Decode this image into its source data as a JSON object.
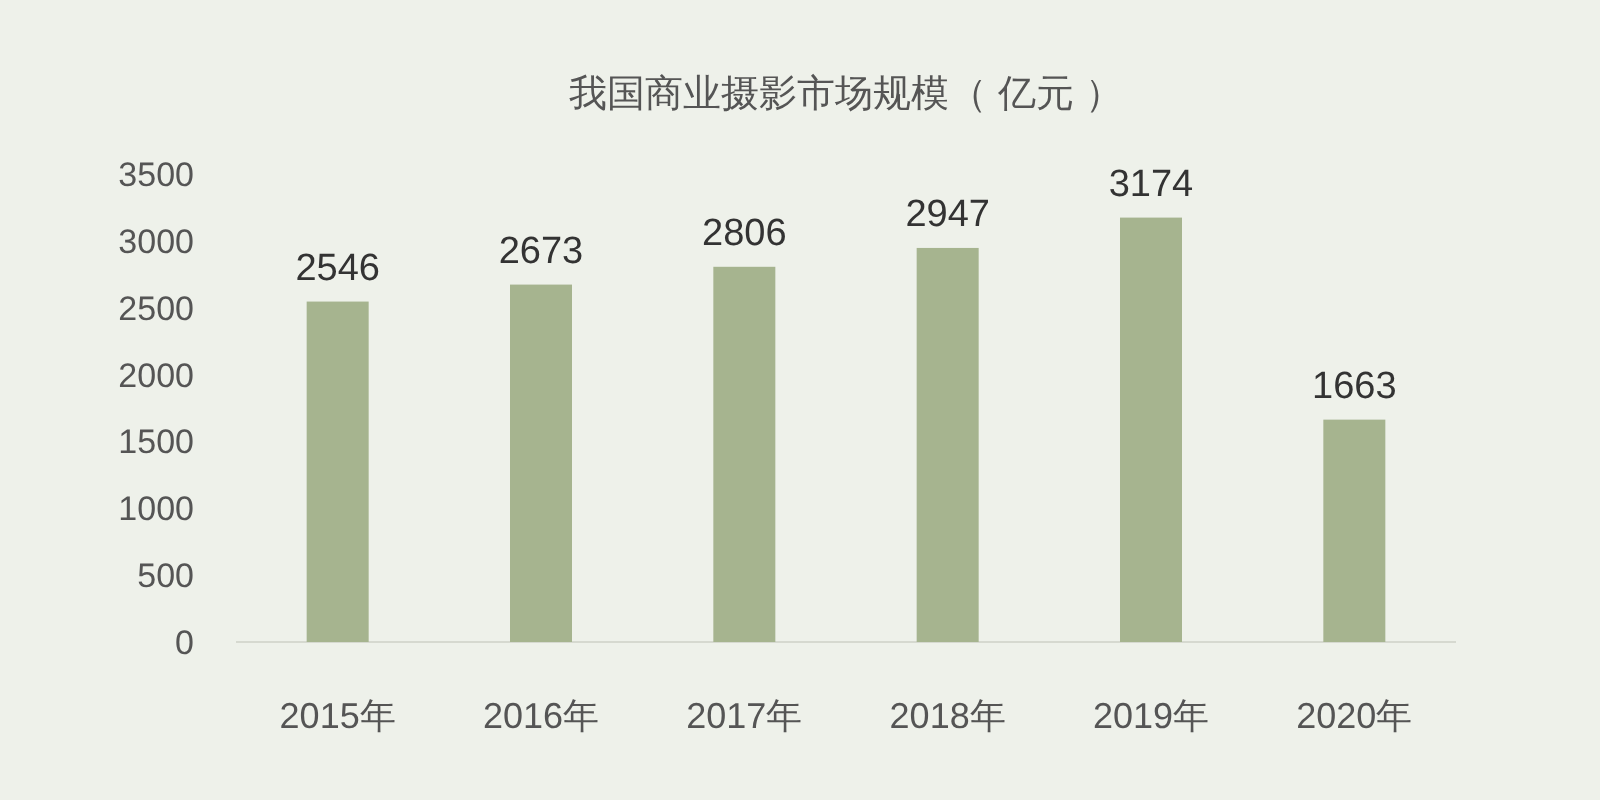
{
  "chart_data": {
    "type": "bar",
    "title": "我国商业摄影市场规模（ 亿元 ）",
    "categories": [
      "2015年",
      "2016年",
      "2017年",
      "2018年",
      "2019年",
      "2020年"
    ],
    "values": [
      2546,
      2673,
      2806,
      2947,
      3174,
      1663
    ],
    "color": "#a6b48f",
    "ylim": [
      0,
      3500
    ],
    "yticks": [
      0,
      500,
      1000,
      1500,
      2000,
      2500,
      3000,
      3500
    ],
    "data_labels": true
  }
}
